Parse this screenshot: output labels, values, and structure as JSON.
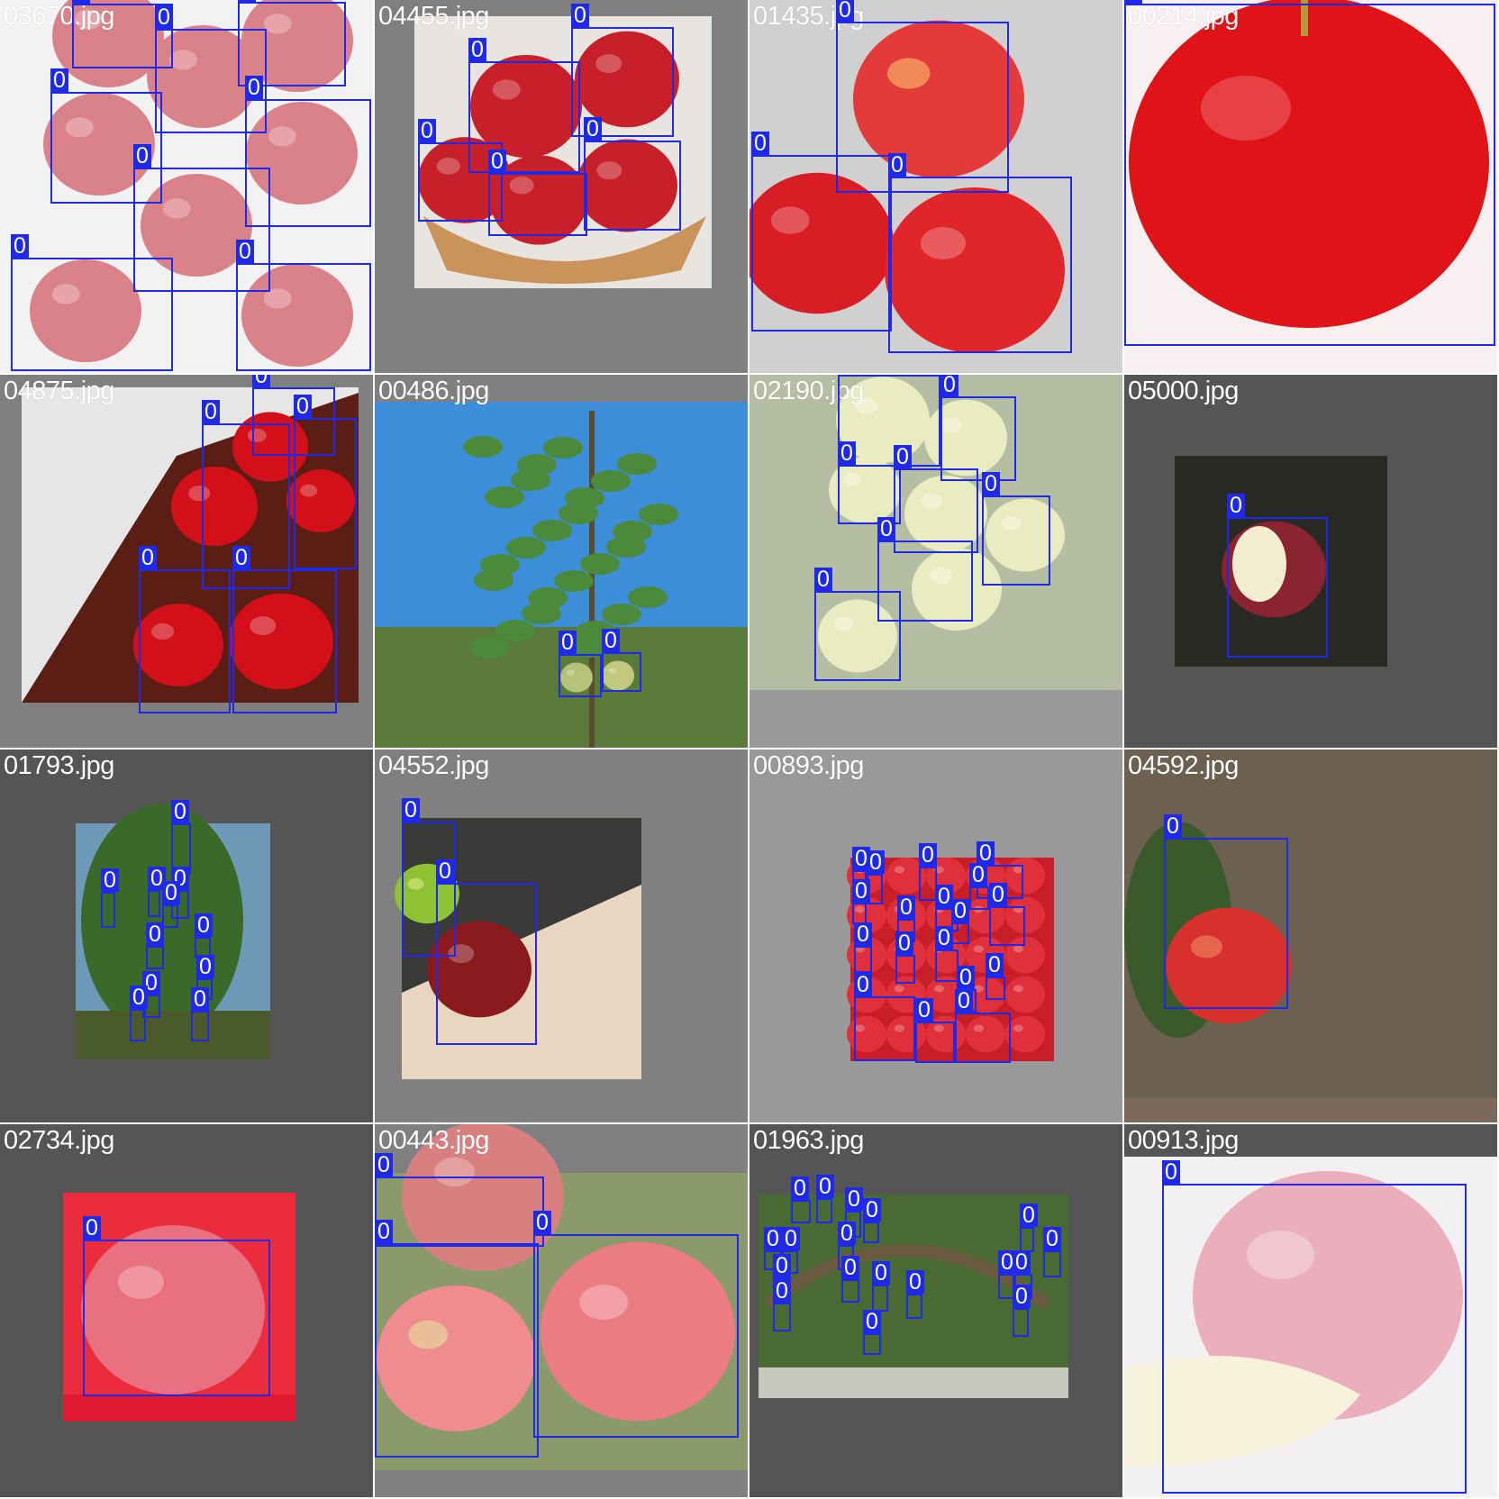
{
  "grid": {
    "box_color": "#1f2ae8",
    "tiles": [
      {
        "filename": "03670.jpg",
        "bg": "#f0f0f0",
        "scene": "crate",
        "boxes": [
          {
            "label": "0",
            "b": [
              80,
              4,
              192,
              76
            ]
          },
          {
            "label": "0",
            "b": [
              172,
              32,
              296,
              148
            ]
          },
          {
            "label": "0",
            "b": [
              264,
              2,
              384,
              96
            ]
          },
          {
            "label": "0",
            "b": [
              56,
              102,
              180,
              226
            ]
          },
          {
            "label": "0",
            "b": [
              272,
              110,
              412,
              252
            ]
          },
          {
            "label": "0",
            "b": [
              148,
              186,
              300,
              324
            ]
          },
          {
            "label": "0",
            "b": [
              12,
              286,
              192,
              412
            ]
          },
          {
            "label": "0",
            "b": [
              262,
              292,
              412,
              412
            ]
          }
        ]
      },
      {
        "filename": "04455.jpg",
        "bg": "#808080",
        "scene": "basket",
        "boxes": [
          {
            "label": "0",
            "b": [
              634,
              30,
              748,
              152
            ]
          },
          {
            "label": "0",
            "b": [
              520,
              68,
              644,
              192
            ]
          },
          {
            "label": "0",
            "b": [
              464,
              158,
              558,
              246
            ]
          },
          {
            "label": "0",
            "b": [
              542,
              192,
              652,
              262
            ]
          },
          {
            "label": "0",
            "b": [
              648,
              156,
              756,
              256
            ]
          }
        ]
      },
      {
        "filename": "01435.jpg",
        "bg": "#cccccc",
        "scene": "pile",
        "boxes": [
          {
            "label": "0",
            "b": [
              928,
              24,
              1120,
              214
            ]
          },
          {
            "label": "0",
            "b": [
              834,
              172,
              990,
              368
            ]
          },
          {
            "label": "0",
            "b": [
              986,
              196,
              1190,
              392
            ]
          }
        ]
      },
      {
        "filename": "00214.jpg",
        "bg": "#f7ecec",
        "scene": "single",
        "boxes": [
          {
            "label": "0",
            "b": [
              1248,
              4,
              1660,
              384
            ]
          }
        ]
      },
      {
        "filename": "04875.jpg",
        "bg": "#808080",
        "scene": "box",
        "boxes": [
          {
            "label": "0",
            "b": [
              280,
              430,
              372,
              506
            ]
          },
          {
            "label": "0",
            "b": [
              224,
              470,
              322,
              654
            ]
          },
          {
            "label": "0",
            "b": [
              326,
              464,
              396,
              632
            ]
          },
          {
            "label": "0",
            "b": [
              154,
              632,
              256,
              792
            ]
          },
          {
            "label": "0",
            "b": [
              258,
              632,
              374,
              792
            ]
          }
        ]
      },
      {
        "filename": "00486.jpg",
        "bg": "#808080",
        "scene": "tree",
        "boxes": [
          {
            "label": "0",
            "b": [
              620,
              726,
              668,
              774
            ]
          },
          {
            "label": "0",
            "b": [
              668,
              724,
              712,
              768
            ]
          }
        ]
      },
      {
        "filename": "02190.jpg",
        "bg": "#999999",
        "scene": "green",
        "boxes": [
          {
            "label": "0",
            "b": [
              930,
              416,
              1044,
              518
            ]
          },
          {
            "label": "0",
            "b": [
              1044,
              440,
              1128,
              534
            ]
          },
          {
            "label": "0",
            "b": [
              930,
              516,
              1000,
              582
            ]
          },
          {
            "label": "0",
            "b": [
              992,
              520,
              1086,
              614
            ]
          },
          {
            "label": "0",
            "b": [
              1090,
              550,
              1166,
              650
            ]
          },
          {
            "label": "0",
            "b": [
              974,
              600,
              1080,
              690
            ]
          },
          {
            "label": "0",
            "b": [
              904,
              656,
              1000,
              756
            ]
          }
        ]
      },
      {
        "filename": "05000.jpg",
        "bg": "#555555",
        "scene": "bitten",
        "boxes": [
          {
            "label": "0",
            "b": [
              1362,
              574,
              1474,
              730
            ]
          }
        ]
      },
      {
        "filename": "01793.jpg",
        "bg": "#555555",
        "scene": "tall",
        "boxes": [
          {
            "label": "0",
            "b": [
              190,
              914,
              212,
              970
            ]
          },
          {
            "label": "0",
            "b": [
              112,
              990,
              128,
              1030
            ]
          },
          {
            "label": "0",
            "b": [
              164,
              988,
              178,
              1018
            ]
          },
          {
            "label": "0",
            "b": [
              190,
              988,
              210,
              1020
            ]
          },
          {
            "label": "0",
            "b": [
              180,
              1004,
              198,
              1030
            ]
          },
          {
            "label": "0",
            "b": [
              162,
              1050,
              182,
              1076
            ]
          },
          {
            "label": "0",
            "b": [
              216,
              1040,
              234,
              1064
            ]
          },
          {
            "label": "0",
            "b": [
              218,
              1086,
              236,
              1110
            ]
          },
          {
            "label": "0",
            "b": [
              158,
              1104,
              178,
              1130
            ]
          },
          {
            "label": "0",
            "b": [
              144,
              1120,
              162,
              1156
            ]
          },
          {
            "label": "0",
            "b": [
              212,
              1122,
              232,
              1156
            ]
          }
        ]
      },
      {
        "filename": "04552.jpg",
        "bg": "#808080",
        "scene": "redgreen",
        "boxes": [
          {
            "label": "0",
            "b": [
              446,
              912,
              506,
              1062
            ]
          },
          {
            "label": "0",
            "b": [
              484,
              980,
              596,
              1160
            ]
          }
        ]
      },
      {
        "filename": "00893.jpg",
        "bg": "#999999",
        "scene": "many",
        "boxes": [
          {
            "label": "0",
            "b": [
              946,
              966,
              962,
              1004
            ]
          },
          {
            "label": "0",
            "b": [
              962,
              970,
              980,
              1004
            ]
          },
          {
            "label": "0",
            "b": [
              1020,
              962,
              1040,
              1000
            ]
          },
          {
            "label": "0",
            "b": [
              1084,
              960,
              1136,
              998
            ]
          },
          {
            "label": "0",
            "b": [
              1076,
              984,
              1098,
              1010
            ]
          },
          {
            "label": "0",
            "b": [
              1038,
              1008,
              1064,
              1034
            ]
          },
          {
            "label": "0",
            "b": [
              1098,
              1006,
              1138,
              1050
            ]
          },
          {
            "label": "0",
            "b": [
              946,
              1002,
              962,
              1026
            ]
          },
          {
            "label": "0",
            "b": [
              996,
              1020,
              1016,
              1046
            ]
          },
          {
            "label": "0",
            "b": [
              1056,
              1024,
              1076,
              1048
            ]
          },
          {
            "label": "0",
            "b": [
              948,
              1050,
              968,
              1080
            ]
          },
          {
            "label": "0",
            "b": [
              994,
              1060,
              1016,
              1092
            ]
          },
          {
            "label": "0",
            "b": [
              1038,
              1054,
              1064,
              1090
            ]
          },
          {
            "label": "0",
            "b": [
              1094,
              1084,
              1116,
              1110
            ]
          },
          {
            "label": "0",
            "b": [
              1062,
              1098,
              1084,
              1124
            ]
          },
          {
            "label": "0",
            "b": [
              948,
              1106,
              1016,
              1178
            ]
          },
          {
            "label": "0",
            "b": [
              1016,
              1134,
              1060,
              1180
            ]
          },
          {
            "label": "0",
            "b": [
              1060,
              1124,
              1122,
              1180
            ]
          }
        ]
      },
      {
        "filename": "04592.jpg",
        "bg": "#7b6a5a",
        "scene": "hanging",
        "boxes": [
          {
            "label": "0",
            "b": [
              1292,
              930,
              1430,
              1120
            ]
          }
        ]
      },
      {
        "filename": "02734.jpg",
        "bg": "#555555",
        "scene": "poster",
        "boxes": [
          {
            "label": "0",
            "b": [
              92,
              1376,
              300,
              1550
            ]
          }
        ]
      },
      {
        "filename": "00443.jpg",
        "bg": "#808080",
        "scene": "twopink",
        "boxes": [
          {
            "label": "0",
            "b": [
              416,
              1306,
              604,
              1384
            ]
          },
          {
            "label": "0",
            "b": [
              592,
              1370,
              820,
              1596
            ]
          },
          {
            "label": "0",
            "b": [
              416,
              1380,
              598,
              1618
            ]
          }
        ]
      },
      {
        "filename": "01963.jpg",
        "bg": "#555555",
        "scene": "orchard",
        "boxes": [
          {
            "label": "0",
            "b": [
              878,
              1332,
              900,
              1358
            ]
          },
          {
            "label": "0",
            "b": [
              906,
              1330,
              924,
              1358
            ]
          },
          {
            "label": "0",
            "b": [
              938,
              1344,
              956,
              1374
            ]
          },
          {
            "label": "0",
            "b": [
              958,
              1356,
              976,
              1380
            ]
          },
          {
            "label": "0",
            "b": [
              1132,
              1362,
              1148,
              1390
            ]
          },
          {
            "label": "0",
            "b": [
              1158,
              1388,
              1178,
              1418
            ]
          },
          {
            "label": "0",
            "b": [
              848,
              1388,
              868,
              1410
            ]
          },
          {
            "label": "0",
            "b": [
              868,
              1388,
              886,
              1414
            ]
          },
          {
            "label": "0",
            "b": [
              930,
              1382,
              948,
              1410
            ]
          },
          {
            "label": "0",
            "b": [
              1108,
              1414,
              1128,
              1442
            ]
          },
          {
            "label": "0",
            "b": [
              1124,
              1414,
              1146,
              1442
            ]
          },
          {
            "label": "0",
            "b": [
              858,
              1418,
              878,
              1448
            ]
          },
          {
            "label": "0",
            "b": [
              934,
              1420,
              954,
              1446
            ]
          },
          {
            "label": "0",
            "b": [
              968,
              1426,
              986,
              1456
            ]
          },
          {
            "label": "0",
            "b": [
              1006,
              1436,
              1024,
              1464
            ]
          },
          {
            "label": "0",
            "b": [
              858,
              1446,
              878,
              1478
            ]
          },
          {
            "label": "0",
            "b": [
              1124,
              1452,
              1142,
              1484
            ]
          },
          {
            "label": "0",
            "b": [
              958,
              1480,
              978,
              1504
            ]
          }
        ]
      },
      {
        "filename": "00913.jpg",
        "bg": "#555555",
        "scene": "slice",
        "boxes": [
          {
            "label": "0",
            "b": [
              1290,
              1314,
              1628,
              1658
            ]
          }
        ]
      }
    ]
  }
}
